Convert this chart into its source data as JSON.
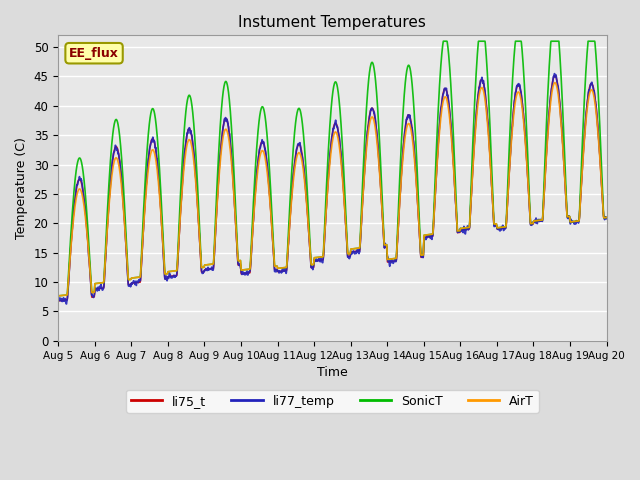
{
  "title": "Instument Temperatures",
  "xlabel": "Time",
  "ylabel": "Temperature (C)",
  "ylim": [
    0,
    52
  ],
  "yticks": [
    0,
    5,
    10,
    15,
    20,
    25,
    30,
    35,
    40,
    45,
    50
  ],
  "xtick_labels": [
    "Aug 5",
    "Aug 6",
    "Aug 7",
    "Aug 8",
    "Aug 9",
    "Aug 10",
    "Aug 11",
    "Aug 12",
    "Aug 13",
    "Aug 14",
    "Aug 15",
    "Aug 16",
    "Aug 17",
    "Aug 18",
    "Aug 19",
    "Aug 20"
  ],
  "annotation": "EE_flux",
  "bg_color": "#dcdcdc",
  "plot_bg_color": "#e8e8e8",
  "series": [
    {
      "name": "li75_t",
      "color": "#cc0000",
      "lw": 1.2
    },
    {
      "name": "li77_temp",
      "color": "#2222bb",
      "lw": 1.2
    },
    {
      "name": "SonicT",
      "color": "#00bb00",
      "lw": 1.2
    },
    {
      "name": "AirT",
      "color": "#ff9900",
      "lw": 1.2
    }
  ],
  "n_days": 15,
  "pts_per_day": 144
}
